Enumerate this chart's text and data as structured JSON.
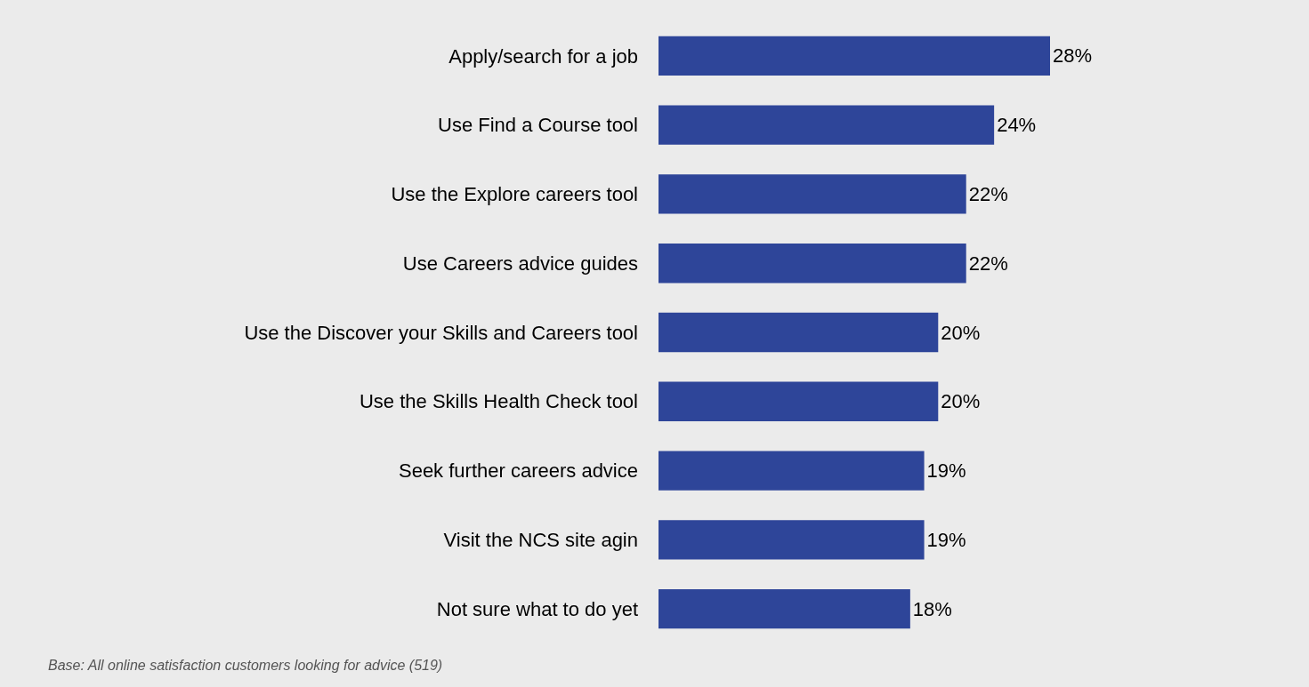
{
  "chart_data": {
    "type": "bar",
    "orientation": "horizontal",
    "categories": [
      "Apply/search for a job",
      "Use Find a Course tool",
      "Use the Explore careers tool",
      "Use Careers advice guides",
      "Use the Discover your Skills and Careers tool",
      "Use the Skills Health Check tool",
      "Seek further careers advice",
      "Visit the NCS site agin",
      "Not sure what to do yet"
    ],
    "values": [
      28,
      24,
      22,
      22,
      20,
      20,
      19,
      19,
      18
    ],
    "value_labels": [
      "28%",
      "24%",
      "22%",
      "22%",
      "20%",
      "20%",
      "19%",
      "19%",
      "18%"
    ],
    "color": "#2e4599",
    "annotations": [
      "Base: All online satisfaction customers looking for advice (519)"
    ],
    "grid": false,
    "legend": false
  }
}
